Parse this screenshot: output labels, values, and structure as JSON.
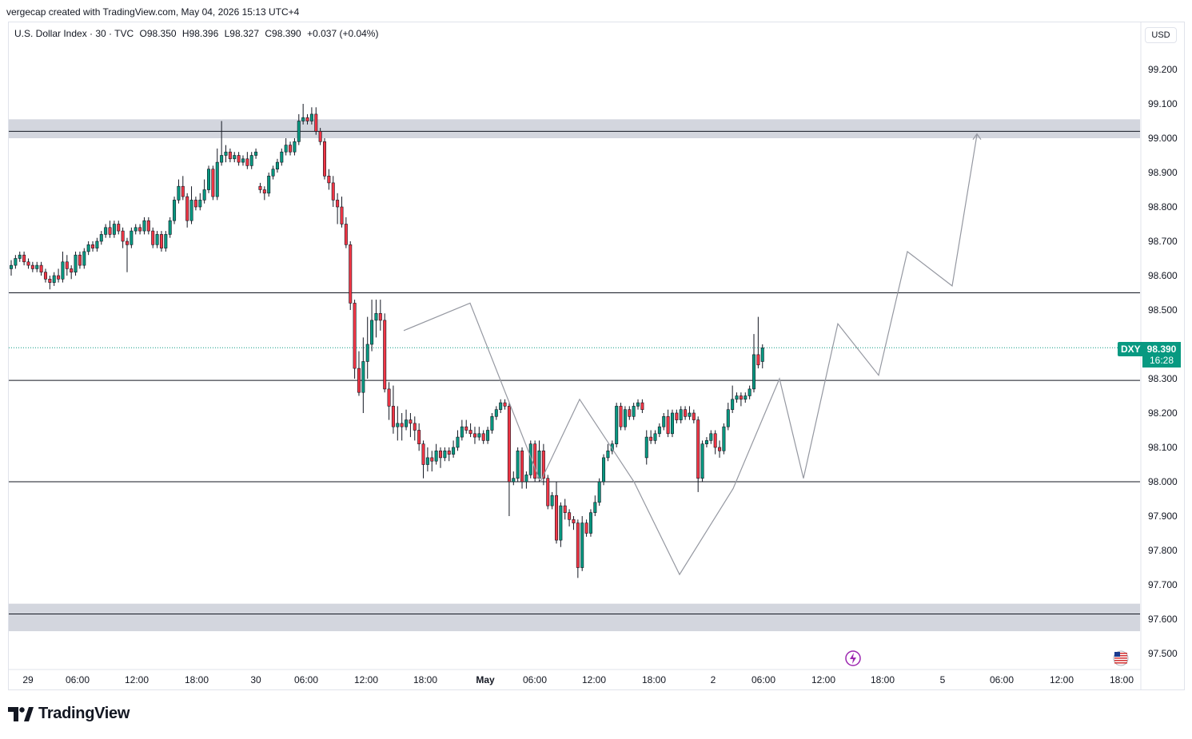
{
  "credit": "vergecap created with TradingView.com, May 04, 2026 15:13 UTC+4",
  "legend": {
    "symbol": "U.S. Dollar Index · 30 · TVC",
    "open": "O98.350",
    "high": "H98.396",
    "low": "L98.327",
    "close": "C98.390",
    "change": "+0.037 (+0.04%)"
  },
  "currency": "USD",
  "ticker": "DXY",
  "last_price": "98.390",
  "countdown": "16:28",
  "footer_brand": "TradingView",
  "colors": {
    "up": "#089981",
    "down": "#f23645",
    "zone": "#d1d4dc",
    "projection": "#9598a1"
  },
  "chart_data": {
    "type": "candlestick",
    "y_range": [
      97.45,
      99.32
    ],
    "y_ticks": [
      "99.200",
      "99.100",
      "99.000",
      "98.900",
      "98.800",
      "98.700",
      "98.600",
      "98.500",
      "98.300",
      "98.200",
      "98.100",
      "98.000",
      "97.900",
      "97.800",
      "97.700",
      "97.600",
      "97.500"
    ],
    "x_ticks": [
      "29",
      "06:00",
      "12:00",
      "18:00",
      "30",
      "06:00",
      "12:00",
      "18:00",
      "May",
      "06:00",
      "12:00",
      "18:00",
      "2",
      "06:00",
      "12:00",
      "18:00",
      "5",
      "06:00",
      "12:00",
      "18:00"
    ],
    "supply_zone": [
      99.0,
      99.055
    ],
    "supply_line": 99.02,
    "demand_zone": [
      97.565,
      97.645
    ],
    "demand_line": 97.615,
    "horizontal_levels": [
      98.55,
      98.295,
      98.0
    ],
    "last_price_line": 98.39,
    "candles": [
      [
        98.62,
        98.63,
        98.6,
        98.645
      ],
      [
        98.63,
        98.65,
        98.62,
        98.66
      ],
      [
        98.65,
        98.66,
        98.64,
        98.67
      ],
      [
        98.66,
        98.64,
        98.63,
        98.67
      ],
      [
        98.64,
        98.63,
        98.62,
        98.65
      ],
      [
        98.63,
        98.62,
        98.61,
        98.64
      ],
      [
        98.62,
        98.63,
        98.61,
        98.64
      ],
      [
        98.63,
        98.61,
        98.6,
        98.64
      ],
      [
        98.61,
        98.59,
        98.58,
        98.62
      ],
      [
        98.59,
        98.58,
        98.56,
        98.6
      ],
      [
        98.58,
        98.6,
        98.57,
        98.61
      ],
      [
        98.6,
        98.59,
        98.58,
        98.62
      ],
      [
        98.59,
        98.64,
        98.58,
        98.67
      ],
      [
        98.64,
        98.62,
        98.6,
        98.66
      ],
      [
        98.62,
        98.61,
        98.59,
        98.63
      ],
      [
        98.61,
        98.66,
        98.6,
        98.67
      ],
      [
        98.66,
        98.63,
        98.62,
        98.67
      ],
      [
        98.63,
        98.67,
        98.62,
        98.68
      ],
      [
        98.67,
        98.69,
        98.66,
        98.7
      ],
      [
        98.69,
        98.68,
        98.67,
        98.7
      ],
      [
        98.68,
        98.7,
        98.67,
        98.71
      ],
      [
        98.7,
        98.72,
        98.69,
        98.73
      ],
      [
        98.72,
        98.74,
        98.71,
        98.75
      ],
      [
        98.74,
        98.72,
        98.71,
        98.76
      ],
      [
        98.72,
        98.75,
        98.71,
        98.76
      ],
      [
        98.75,
        98.73,
        98.72,
        98.76
      ],
      [
        98.73,
        98.7,
        98.68,
        98.74
      ],
      [
        98.7,
        98.69,
        98.61,
        98.71
      ],
      [
        98.69,
        98.73,
        98.68,
        98.74
      ],
      [
        98.73,
        98.74,
        98.72,
        98.75
      ],
      [
        98.74,
        98.73,
        98.72,
        98.75
      ],
      [
        98.73,
        98.76,
        98.72,
        98.77
      ],
      [
        98.76,
        98.73,
        98.72,
        98.77
      ],
      [
        98.73,
        98.69,
        98.68,
        98.74
      ],
      [
        98.69,
        98.72,
        98.68,
        98.73
      ],
      [
        98.72,
        98.68,
        98.67,
        98.73
      ],
      [
        98.68,
        98.72,
        98.67,
        98.73
      ],
      [
        98.72,
        98.76,
        98.71,
        98.77
      ],
      [
        98.76,
        98.82,
        98.75,
        98.83
      ],
      [
        98.82,
        98.86,
        98.81,
        98.88
      ],
      [
        98.86,
        98.83,
        98.82,
        98.89
      ],
      [
        98.83,
        98.76,
        98.74,
        98.84
      ],
      [
        98.76,
        98.82,
        98.75,
        98.86
      ],
      [
        98.82,
        98.8,
        98.79,
        98.83
      ],
      [
        98.8,
        98.82,
        98.79,
        98.84
      ],
      [
        98.82,
        98.85,
        98.81,
        98.88
      ],
      [
        98.85,
        98.91,
        98.84,
        98.92
      ],
      [
        98.91,
        98.83,
        98.82,
        98.92
      ],
      [
        98.83,
        98.93,
        98.82,
        98.97
      ],
      [
        98.93,
        98.95,
        98.92,
        99.05
      ],
      [
        98.95,
        98.96,
        98.93,
        98.98
      ],
      [
        98.96,
        98.94,
        98.93,
        98.97
      ],
      [
        98.94,
        98.95,
        98.93,
        98.96
      ],
      [
        98.95,
        98.93,
        98.92,
        98.96
      ],
      [
        98.93,
        98.94,
        98.92,
        98.95
      ],
      [
        98.94,
        98.92,
        98.91,
        98.96
      ],
      [
        98.92,
        98.95,
        98.91,
        98.96
      ],
      [
        98.95,
        98.96,
        98.94,
        98.97
      ],
      [
        98.86,
        98.85,
        98.84,
        98.87
      ],
      [
        98.85,
        98.84,
        98.82,
        98.86
      ],
      [
        98.84,
        98.89,
        98.83,
        98.9
      ],
      [
        98.89,
        98.91,
        98.88,
        98.92
      ],
      [
        98.91,
        98.93,
        98.9,
        98.94
      ],
      [
        98.93,
        98.96,
        98.92,
        98.97
      ],
      [
        98.96,
        98.98,
        98.95,
        99.0
      ],
      [
        98.98,
        98.96,
        98.95,
        98.99
      ],
      [
        98.96,
        98.99,
        98.95,
        99.0
      ],
      [
        98.99,
        99.05,
        98.98,
        99.07
      ],
      [
        99.05,
        99.06,
        99.04,
        99.1
      ],
      [
        99.06,
        99.05,
        99.04,
        99.07
      ],
      [
        99.05,
        99.07,
        99.04,
        99.09
      ],
      [
        99.07,
        99.02,
        99.01,
        99.09
      ],
      [
        99.02,
        98.99,
        98.98,
        99.03
      ],
      [
        98.99,
        98.89,
        98.88,
        99.0
      ],
      [
        98.89,
        98.87,
        98.85,
        98.91
      ],
      [
        98.87,
        98.82,
        98.8,
        98.89
      ],
      [
        98.82,
        98.8,
        98.75,
        98.84
      ],
      [
        98.8,
        98.75,
        98.74,
        98.83
      ],
      [
        98.75,
        98.69,
        98.68,
        98.77
      ],
      [
        98.69,
        98.52,
        98.5,
        98.7
      ],
      [
        98.52,
        98.33,
        98.3,
        98.53
      ],
      [
        98.33,
        98.26,
        98.25,
        98.38
      ],
      [
        98.26,
        98.35,
        98.2,
        98.42
      ],
      [
        98.35,
        98.4,
        98.3,
        98.48
      ],
      [
        98.4,
        98.47,
        98.38,
        98.53
      ],
      [
        98.47,
        98.49,
        98.42,
        98.53
      ],
      [
        98.49,
        98.47,
        98.44,
        98.53
      ],
      [
        98.47,
        98.27,
        98.26,
        98.49
      ],
      [
        98.27,
        98.22,
        98.18,
        98.29
      ],
      [
        98.22,
        98.16,
        98.14,
        98.28
      ],
      [
        98.16,
        98.17,
        98.12,
        98.22
      ],
      [
        98.17,
        98.16,
        98.12,
        98.2
      ],
      [
        98.16,
        98.18,
        98.15,
        98.21
      ],
      [
        98.18,
        98.17,
        98.13,
        98.2
      ],
      [
        98.17,
        98.15,
        98.12,
        98.19
      ],
      [
        98.15,
        98.11,
        98.09,
        98.17
      ],
      [
        98.11,
        98.05,
        98.01,
        98.12
      ],
      [
        98.05,
        98.07,
        98.03,
        98.1
      ],
      [
        98.07,
        98.06,
        98.03,
        98.09
      ],
      [
        98.06,
        98.09,
        98.05,
        98.11
      ],
      [
        98.09,
        98.07,
        98.04,
        98.1
      ],
      [
        98.07,
        98.09,
        98.06,
        98.1
      ],
      [
        98.09,
        98.08,
        98.06,
        98.1
      ],
      [
        98.08,
        98.1,
        98.07,
        98.12
      ],
      [
        98.1,
        98.13,
        98.09,
        98.15
      ],
      [
        98.13,
        98.16,
        98.12,
        98.18
      ],
      [
        98.16,
        98.15,
        98.14,
        98.18
      ],
      [
        98.15,
        98.14,
        98.13,
        98.17
      ],
      [
        98.14,
        98.13,
        98.11,
        98.16
      ],
      [
        98.13,
        98.14,
        98.12,
        98.16
      ],
      [
        98.14,
        98.12,
        98.11,
        98.15
      ],
      [
        98.12,
        98.15,
        98.11,
        98.16
      ],
      [
        98.15,
        98.19,
        98.14,
        98.2
      ],
      [
        98.19,
        98.21,
        98.18,
        98.22
      ],
      [
        98.21,
        98.23,
        98.2,
        98.24
      ],
      [
        98.23,
        98.22,
        98.21,
        98.24
      ],
      [
        98.22,
        98.0,
        97.9,
        98.23
      ],
      [
        98.0,
        98.01,
        97.99,
        98.03
      ],
      [
        98.01,
        98.09,
        98.0,
        98.1
      ],
      [
        98.09,
        98.0,
        97.98,
        98.1
      ],
      [
        98.0,
        98.02,
        97.98,
        98.03
      ],
      [
        98.02,
        98.11,
        98.01,
        98.12
      ],
      [
        98.11,
        98.01,
        98.0,
        98.12
      ],
      [
        98.01,
        98.09,
        98.0,
        98.12
      ],
      [
        98.09,
        98.01,
        97.99,
        98.11
      ],
      [
        98.01,
        97.93,
        97.92,
        98.02
      ],
      [
        97.93,
        97.96,
        97.92,
        97.97
      ],
      [
        97.96,
        97.83,
        97.82,
        98.0
      ],
      [
        97.83,
        97.93,
        97.81,
        97.94
      ],
      [
        97.93,
        97.91,
        97.89,
        97.95
      ],
      [
        97.91,
        97.89,
        97.87,
        97.92
      ],
      [
        97.89,
        97.88,
        97.86,
        97.9
      ],
      [
        97.88,
        97.75,
        97.72,
        97.89
      ],
      [
        97.75,
        97.88,
        97.74,
        97.9
      ],
      [
        97.88,
        97.85,
        97.84,
        97.89
      ],
      [
        97.85,
        97.91,
        97.84,
        97.92
      ],
      [
        97.91,
        97.94,
        97.9,
        97.96
      ],
      [
        97.94,
        98.0,
        97.93,
        98.01
      ],
      [
        98.0,
        98.07,
        97.99,
        98.08
      ],
      [
        98.07,
        98.09,
        98.06,
        98.11
      ],
      [
        98.09,
        98.11,
        98.08,
        98.12
      ],
      [
        98.11,
        98.22,
        98.1,
        98.23
      ],
      [
        98.22,
        98.16,
        98.15,
        98.23
      ],
      [
        98.16,
        98.21,
        98.15,
        98.22
      ],
      [
        98.21,
        98.19,
        98.18,
        98.22
      ],
      [
        98.19,
        98.22,
        98.18,
        98.23
      ],
      [
        98.22,
        98.23,
        98.21,
        98.24
      ],
      [
        98.23,
        98.21,
        98.2,
        98.24
      ],
      [
        98.07,
        98.13,
        98.05,
        98.15
      ],
      [
        98.13,
        98.12,
        98.11,
        98.15
      ],
      [
        98.12,
        98.14,
        98.11,
        98.15
      ],
      [
        98.14,
        98.16,
        98.13,
        98.17
      ],
      [
        98.16,
        98.19,
        98.15,
        98.2
      ],
      [
        98.19,
        98.14,
        98.13,
        98.21
      ],
      [
        98.14,
        98.2,
        98.13,
        98.21
      ],
      [
        98.2,
        98.18,
        98.17,
        98.21
      ],
      [
        98.18,
        98.21,
        98.17,
        98.22
      ],
      [
        98.21,
        98.19,
        98.18,
        98.22
      ],
      [
        98.19,
        98.2,
        98.18,
        98.22
      ],
      [
        98.2,
        98.18,
        98.17,
        98.21
      ],
      [
        98.18,
        98.01,
        97.97,
        98.19
      ],
      [
        98.01,
        98.11,
        98.0,
        98.12
      ],
      [
        98.11,
        98.12,
        98.1,
        98.13
      ],
      [
        98.12,
        98.14,
        98.11,
        98.15
      ],
      [
        98.14,
        98.1,
        98.08,
        98.15
      ],
      [
        98.1,
        98.09,
        98.07,
        98.12
      ],
      [
        98.09,
        98.16,
        98.08,
        98.17
      ],
      [
        98.16,
        98.21,
        98.15,
        98.23
      ],
      [
        98.21,
        98.24,
        98.2,
        98.28
      ],
      [
        98.24,
        98.25,
        98.23,
        98.26
      ],
      [
        98.25,
        98.24,
        98.22,
        98.26
      ],
      [
        98.24,
        98.25,
        98.23,
        98.26
      ],
      [
        98.25,
        98.27,
        98.24,
        98.28
      ],
      [
        98.27,
        98.37,
        98.26,
        98.43
      ],
      [
        98.37,
        98.34,
        98.33,
        98.48
      ],
      [
        98.35,
        98.39,
        98.33,
        98.4
      ]
    ],
    "projection_path": [
      [
        98.62,
        98.44
      ],
      [
        98.26,
        98.52
      ],
      [
        98.0,
        98.0
      ],
      [
        98.17,
        98.24
      ],
      [
        98.0,
        98.0
      ],
      [
        97.73,
        97.73
      ],
      [
        97.98,
        97.98
      ],
      [
        98.3,
        98.3
      ],
      [
        98.01,
        98.01
      ],
      [
        98.46,
        98.46
      ],
      [
        98.31,
        98.31
      ],
      [
        98.67,
        98.67
      ],
      [
        98.57,
        98.57
      ],
      [
        99.01,
        99.01
      ]
    ]
  }
}
